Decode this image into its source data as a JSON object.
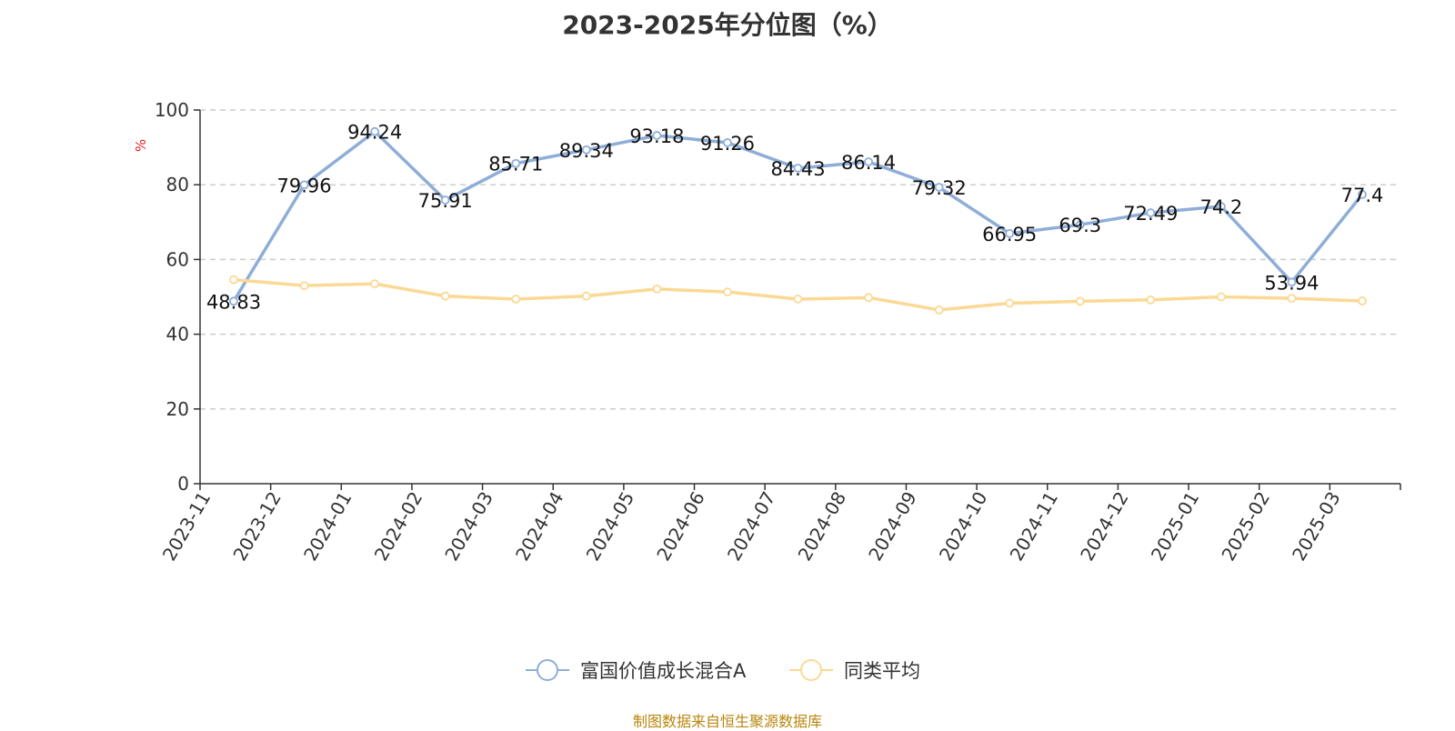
{
  "chart_data": {
    "type": "line",
    "title": "2023-2025年分位图（%）",
    "ylabel": "%",
    "ylim": [
      0,
      100
    ],
    "yticks": [
      0,
      20,
      40,
      60,
      80,
      100
    ],
    "grid": true,
    "legend_position": "bottom",
    "categories": [
      "2023-11",
      "2023-12",
      "2024-01",
      "2024-02",
      "2024-03",
      "2024-04",
      "2024-05",
      "2024-06",
      "2024-07",
      "2024-08",
      "2024-09",
      "2024-10",
      "2024-11",
      "2024-12",
      "2025-01",
      "2025-02",
      "2025-03"
    ],
    "series": [
      {
        "name": "富国价值成长混合A",
        "color": "#8eaed8",
        "values": [
          48.83,
          79.96,
          94.24,
          75.91,
          85.71,
          89.34,
          93.18,
          91.26,
          84.43,
          86.14,
          79.32,
          66.95,
          69.3,
          72.49,
          74.2,
          53.94,
          77.4
        ],
        "labels": [
          "48.83",
          "79.96",
          "94.24",
          "75.91",
          "85.71",
          "89.34",
          "93.18",
          "91.26",
          "84.43",
          "86.14",
          "79.32",
          "66.95",
          "69.3",
          "72.49",
          "74.2",
          "53.94",
          "77.4"
        ]
      },
      {
        "name": "同类平均",
        "color": "#fbd994",
        "values": [
          54.6,
          53.0,
          53.5,
          50.2,
          49.4,
          50.2,
          52.1,
          51.3,
          49.4,
          49.8,
          46.5,
          48.3,
          48.8,
          49.2,
          50.0,
          49.6,
          48.9
        ]
      }
    ]
  },
  "source_note": "制图数据来自恒生聚源数据库"
}
